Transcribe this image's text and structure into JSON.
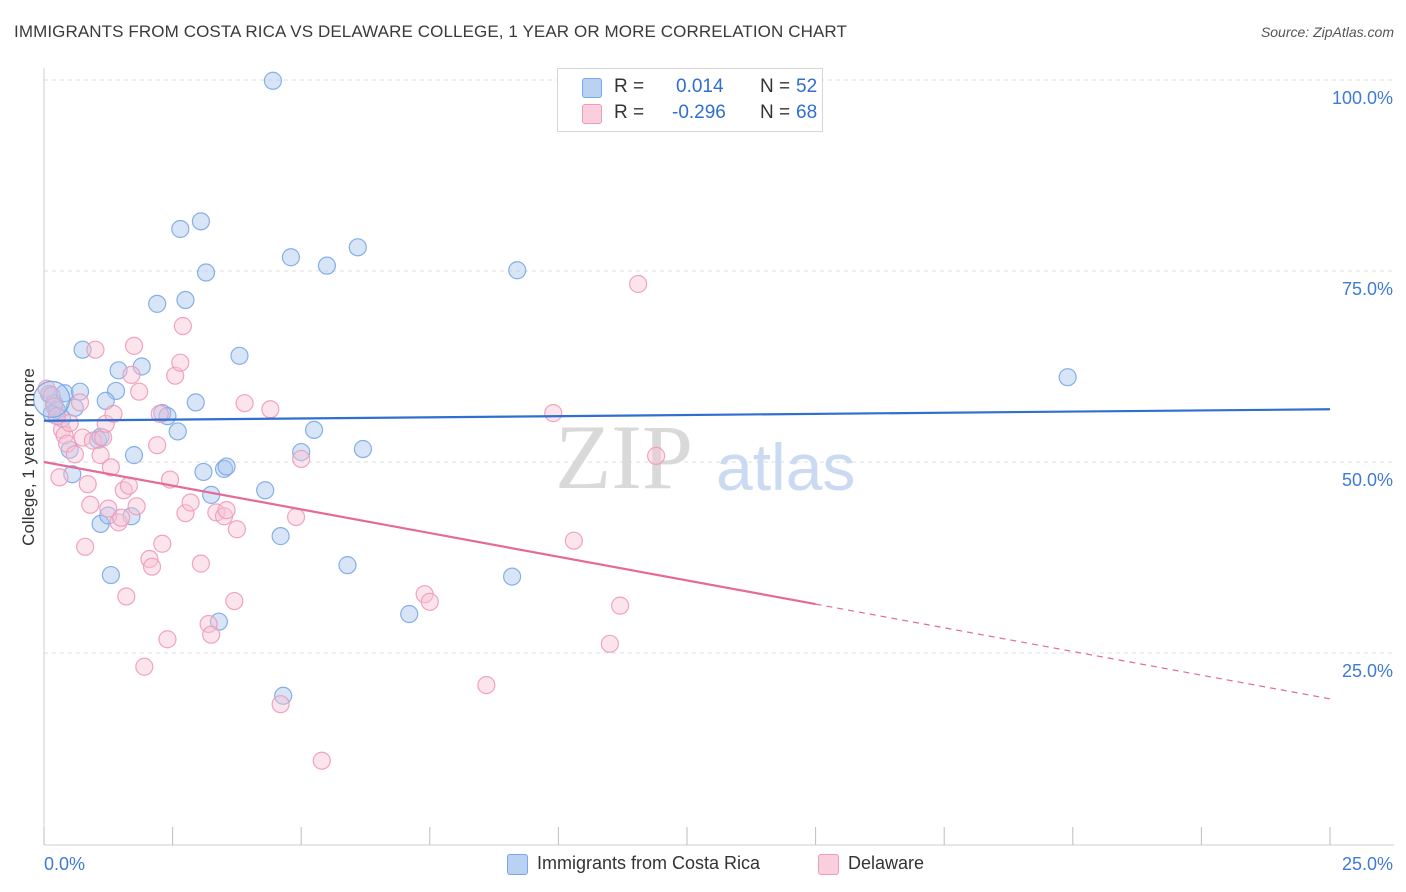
{
  "chart_data": {
    "type": "scatter",
    "title": "IMMIGRANTS FROM COSTA RICA VS DELAWARE COLLEGE, 1 YEAR OR MORE CORRELATION CHART",
    "source": "Source: ZipAtlas.com",
    "xlabel": "",
    "ylabel": "College, 1 year or more",
    "xlim": [
      0,
      25
    ],
    "ylim": [
      0,
      100
    ],
    "x_tick_labels": [
      "0.0%",
      "25.0%"
    ],
    "y_tick_labels": [
      "100.0%",
      "75.0%",
      "50.0%",
      "25.0%"
    ],
    "y_ticks": [
      100,
      75,
      50,
      25
    ],
    "watermark": "ZIPatlas",
    "colors": {
      "blue": "#7aa7e6",
      "blue_fill": "#a9c6ee",
      "blue_line": "#2f6fd0",
      "pink": "#f09ab8",
      "pink_fill": "#f7c3d5",
      "pink_line": "#e56a98",
      "tick_label": "#3f7bd4",
      "grid": "#dcdcdc"
    },
    "legend": [
      {
        "r_label": "R =",
        "r": "0.014",
        "n_label": "N =",
        "n": "52",
        "color": "blue"
      },
      {
        "r_label": "R =",
        "r": "-0.296",
        "n_label": "N =",
        "n": "68",
        "color": "pink"
      }
    ],
    "series": [
      {
        "name": "Immigrants from Costa Rica",
        "color": "blue",
        "trend": {
          "x0": 0,
          "y0": 55.4,
          "x1": 25,
          "y1": 56.9,
          "solid_until": 25
        },
        "points": [
          [
            0.1,
            58.9
          ],
          [
            0.2,
            57.7
          ],
          [
            0.25,
            56.8
          ],
          [
            0.35,
            55.7
          ],
          [
            0.4,
            59.0
          ],
          [
            0.5,
            51.6
          ],
          [
            0.55,
            48.4
          ],
          [
            0.7,
            59.2
          ],
          [
            0.75,
            64.7
          ],
          [
            1.1,
            41.9
          ],
          [
            1.05,
            52.9
          ],
          [
            1.1,
            53.3
          ],
          [
            1.25,
            43.0
          ],
          [
            1.3,
            35.2
          ],
          [
            1.4,
            59.3
          ],
          [
            1.45,
            62.0
          ],
          [
            1.7,
            42.9
          ],
          [
            1.75,
            50.9
          ],
          [
            1.9,
            62.5
          ],
          [
            2.2,
            70.7
          ],
          [
            2.3,
            56.4
          ],
          [
            2.4,
            56.0
          ],
          [
            2.6,
            54.0
          ],
          [
            2.65,
            80.5
          ],
          [
            2.75,
            71.2
          ],
          [
            2.95,
            57.8
          ],
          [
            3.05,
            81.5
          ],
          [
            3.1,
            48.7
          ],
          [
            3.15,
            74.8
          ],
          [
            3.25,
            45.7
          ],
          [
            3.4,
            29.1
          ],
          [
            3.5,
            49.1
          ],
          [
            3.55,
            49.4
          ],
          [
            3.8,
            63.9
          ],
          [
            4.3,
            46.3
          ],
          [
            4.45,
            99.9
          ],
          [
            4.6,
            40.3
          ],
          [
            4.65,
            19.4
          ],
          [
            4.8,
            76.8
          ],
          [
            5.0,
            51.3
          ],
          [
            5.25,
            54.2
          ],
          [
            5.5,
            75.7
          ],
          [
            5.9,
            36.5
          ],
          [
            6.1,
            78.1
          ],
          [
            6.2,
            51.7
          ],
          [
            7.1,
            30.1
          ],
          [
            9.1,
            35.0
          ],
          [
            9.2,
            75.1
          ],
          [
            19.9,
            61.1
          ],
          [
            1.2,
            58.0
          ],
          [
            0.15,
            56.3
          ],
          [
            0.6,
            57.1
          ]
        ]
      },
      {
        "name": "Delaware",
        "color": "pink",
        "trend": {
          "x0": 0,
          "y0": 50.0,
          "x1": 25,
          "y1": 19.0,
          "solid_until": 15
        },
        "points": [
          [
            0.05,
            59.6
          ],
          [
            0.15,
            58.7
          ],
          [
            0.2,
            57.3
          ],
          [
            0.3,
            48.0
          ],
          [
            0.35,
            54.2
          ],
          [
            0.4,
            53.5
          ],
          [
            0.45,
            52.4
          ],
          [
            0.5,
            55.1
          ],
          [
            0.6,
            51.0
          ],
          [
            0.7,
            57.8
          ],
          [
            0.75,
            53.2
          ],
          [
            0.8,
            38.9
          ],
          [
            0.85,
            47.1
          ],
          [
            0.9,
            44.4
          ],
          [
            0.95,
            52.8
          ],
          [
            1.0,
            64.7
          ],
          [
            1.1,
            50.9
          ],
          [
            1.15,
            53.2
          ],
          [
            1.2,
            55.0
          ],
          [
            1.25,
            43.9
          ],
          [
            1.35,
            56.3
          ],
          [
            1.45,
            42.1
          ],
          [
            1.5,
            42.7
          ],
          [
            1.55,
            46.3
          ],
          [
            1.6,
            32.4
          ],
          [
            1.65,
            46.9
          ],
          [
            1.7,
            61.4
          ],
          [
            1.75,
            65.2
          ],
          [
            1.8,
            44.2
          ],
          [
            1.85,
            59.2
          ],
          [
            1.95,
            23.2
          ],
          [
            2.05,
            37.3
          ],
          [
            2.1,
            36.3
          ],
          [
            2.2,
            52.2
          ],
          [
            2.25,
            56.3
          ],
          [
            2.3,
            39.3
          ],
          [
            2.4,
            26.8
          ],
          [
            2.45,
            47.7
          ],
          [
            2.55,
            61.3
          ],
          [
            2.65,
            63.0
          ],
          [
            2.7,
            67.8
          ],
          [
            2.75,
            43.3
          ],
          [
            2.85,
            44.7
          ],
          [
            3.05,
            36.7
          ],
          [
            3.2,
            28.8
          ],
          [
            3.25,
            27.4
          ],
          [
            3.35,
            43.4
          ],
          [
            3.5,
            42.9
          ],
          [
            3.55,
            43.7
          ],
          [
            3.7,
            31.8
          ],
          [
            3.75,
            41.2
          ],
          [
            3.9,
            57.7
          ],
          [
            4.4,
            56.9
          ],
          [
            4.6,
            18.3
          ],
          [
            4.9,
            42.8
          ],
          [
            5.0,
            50.4
          ],
          [
            5.4,
            10.9
          ],
          [
            7.4,
            32.7
          ],
          [
            7.5,
            31.7
          ],
          [
            8.6,
            20.8
          ],
          [
            9.9,
            56.4
          ],
          [
            10.3,
            39.7
          ],
          [
            11.0,
            26.2
          ],
          [
            11.2,
            31.2
          ],
          [
            11.55,
            73.3
          ],
          [
            11.9,
            50.8
          ],
          [
            0.25,
            56.0
          ],
          [
            1.3,
            49.3
          ]
        ]
      }
    ],
    "bottom_legend": [
      {
        "label": "Immigrants from Costa Rica",
        "color": "blue"
      },
      {
        "label": "Delaware",
        "color": "pink"
      }
    ]
  }
}
